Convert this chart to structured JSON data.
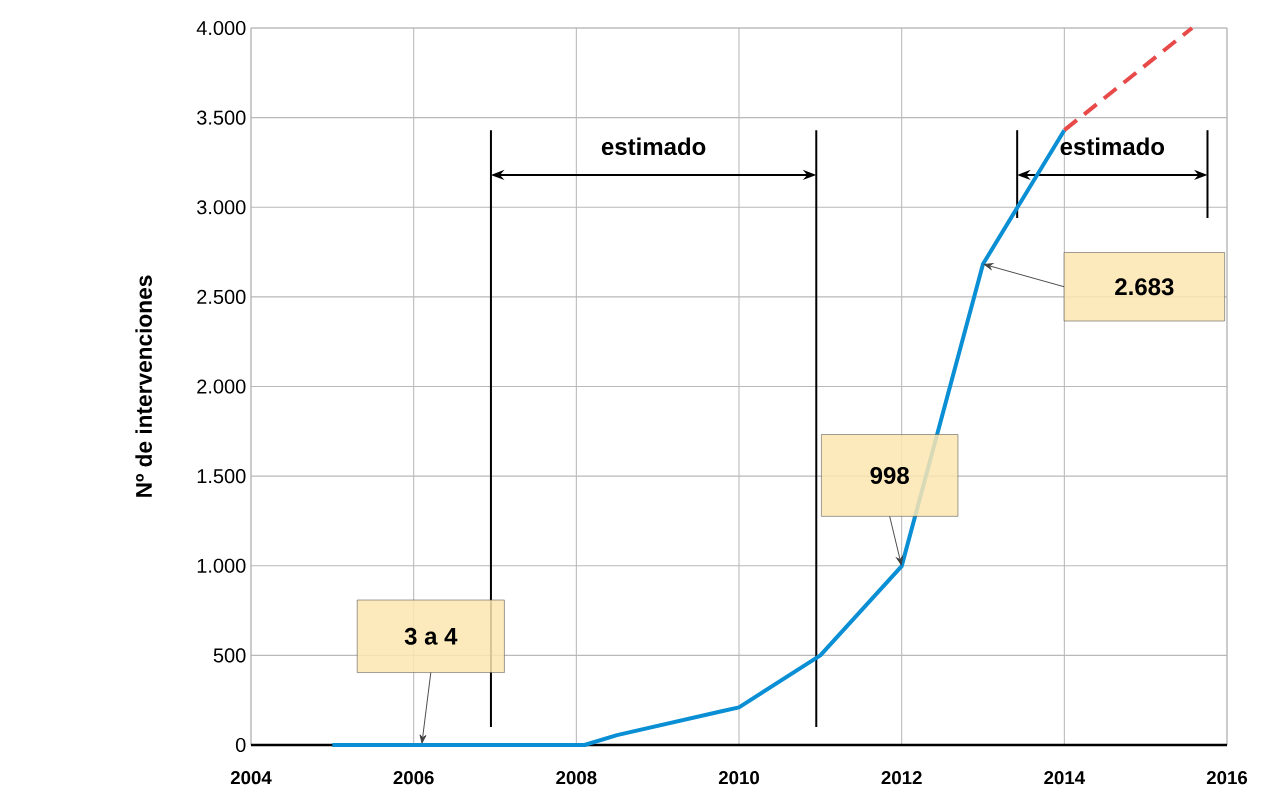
{
  "chart_data": {
    "type": "line",
    "ylabel": "Nº de intervenciones",
    "series": [
      {
        "color": "#0a8fd4",
        "x": [
          2005,
          2008.1,
          2008.5,
          2009.8,
          2010,
          2011,
          2012,
          2013,
          2014
        ],
        "values": [
          0,
          0,
          55,
          190,
          210,
          500,
          998,
          2683,
          3430
        ]
      },
      {
        "color": "#e84a4a",
        "line_style": "dashed",
        "x": [
          2014,
          2015.57
        ],
        "values": [
          3430,
          4000
        ]
      }
    ],
    "xlim": [
      2004,
      2016
    ],
    "ylim": [
      0,
      4000
    ],
    "xticks": [
      2004,
      2006,
      2008,
      2010,
      2012,
      2014,
      2016
    ],
    "yticks": [
      0,
      500,
      {
        "value": 1000,
        "label": "1.000"
      },
      {
        "value": 1500,
        "label": "1.500"
      },
      {
        "value": 2000,
        "label": "2.000"
      },
      {
        "value": 2500,
        "label": "2.500"
      },
      {
        "value": 3000,
        "label": "3.000"
      },
      {
        "value": 3500,
        "label": "3.500"
      },
      {
        "value": 4000,
        "label": "4.000"
      }
    ],
    "grid": true,
    "marker": "none",
    "line_style": "solid",
    "ref_lines": [
      {
        "axis": "x",
        "value": 2006.95
      },
      {
        "axis": "x",
        "value": 2010.95
      },
      {
        "axis": "x",
        "value": 2013.42
      },
      {
        "axis": "x",
        "value": 2015.76
      }
    ],
    "annotations": [
      "estimado",
      "estimado",
      {
        "text": "3 a 4",
        "x": 2006.1,
        "y": 4
      },
      "998",
      "2.683"
    ]
  }
}
